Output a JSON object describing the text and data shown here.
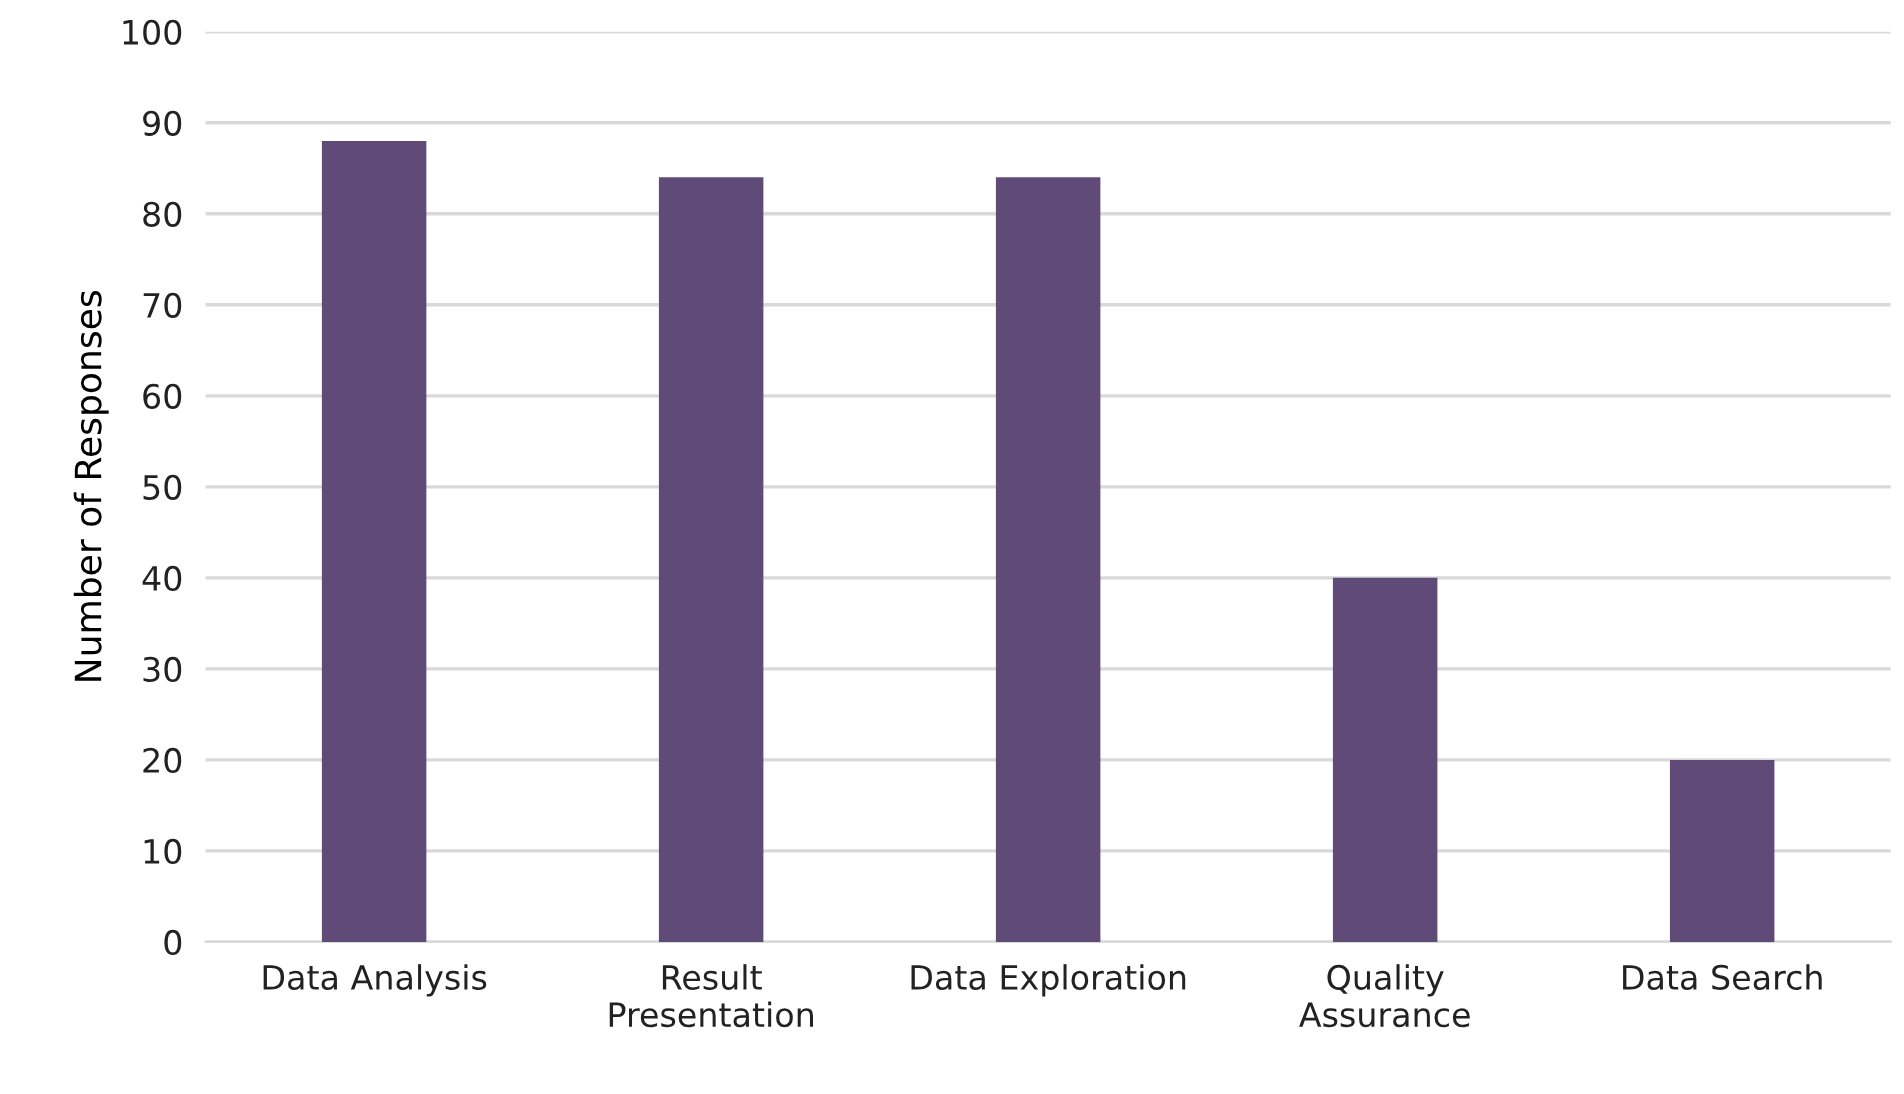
{
  "chart_data": {
    "type": "bar",
    "ylabel": "Number of Responses",
    "categories": [
      "Data Analysis",
      "Result\nPresentation",
      "Data Exploration",
      "Quality\nAssurance",
      "Data Search"
    ],
    "values": [
      88,
      84,
      84,
      40,
      20
    ],
    "color": "#5f4a78",
    "ylim": [
      0,
      100
    ],
    "yticks": [
      0,
      10,
      20,
      30,
      40,
      50,
      60,
      70,
      80,
      90,
      100
    ],
    "grid": "y"
  }
}
